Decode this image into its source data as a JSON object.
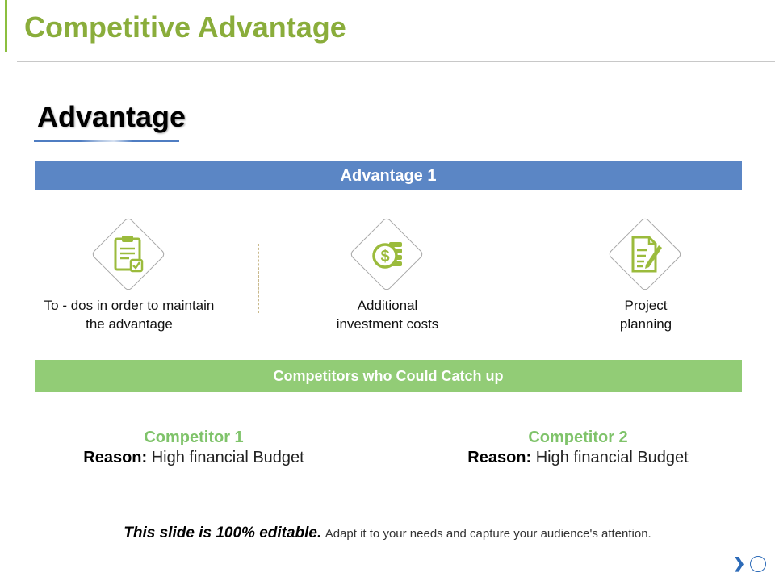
{
  "slide": {
    "title": "Competitive Advantage",
    "section_heading": "Advantage"
  },
  "advantage_bar": {
    "label": "Advantage 1"
  },
  "advantages": [
    {
      "icon": "clipboard-check-icon",
      "label_line1": "To - dos in order to maintain",
      "label_line2": "the advantage"
    },
    {
      "icon": "dollar-coins-icon",
      "label_line1": "Additional",
      "label_line2": "investment costs"
    },
    {
      "icon": "document-pencil-icon",
      "label_line1": "Project",
      "label_line2": "planning"
    }
  ],
  "competitors_bar": {
    "label": "Competitors who Could Catch up"
  },
  "competitors": [
    {
      "name": "Competitor 1",
      "reason_label": "Reason:",
      "reason_text": "High financial Budget"
    },
    {
      "name": "Competitor 2",
      "reason_label": "Reason:",
      "reason_text": "High financial Budget"
    }
  ],
  "footer": {
    "emphasis": "This slide is 100% editable.",
    "text": "Adapt it to your needs and capture your audience's attention."
  },
  "colors": {
    "title_green": "#8aad3b",
    "bar_blue": "#5b86c5",
    "bar_green": "#92cc76",
    "competitor_green": "#7fc36a",
    "icon_green": "#9bbb3c",
    "nav_blue": "#2d6bb8"
  },
  "nav": {
    "next_icon": "chevron-right-icon",
    "circle_icon": "circle-icon"
  }
}
